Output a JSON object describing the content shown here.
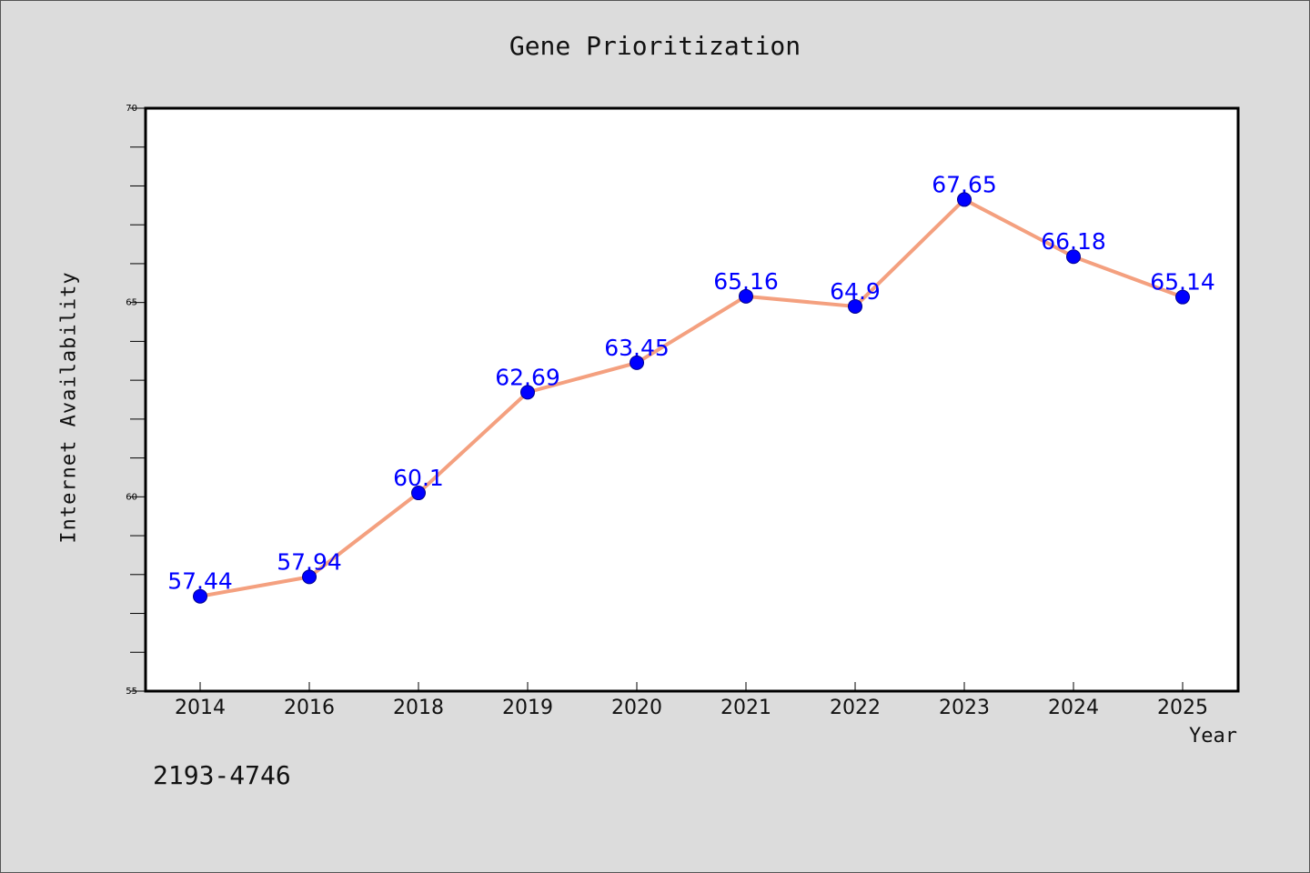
{
  "chart_data": {
    "type": "line",
    "title": "Gene Prioritization",
    "xlabel": "Year",
    "ylabel": "Internet Availability",
    "categories": [
      "2014",
      "2016",
      "2018",
      "2019",
      "2020",
      "2021",
      "2022",
      "2023",
      "2024",
      "2025"
    ],
    "series": [
      {
        "values": [
          57.44,
          57.94,
          60.1,
          62.69,
          63.45,
          65.16,
          64.9,
          67.65,
          66.18,
          65.14
        ],
        "labels": [
          "57.44",
          "57.94",
          "60.1",
          "62.69",
          "63.45",
          "65.16",
          "64.9",
          "67.65",
          "66.18",
          "65.14"
        ],
        "line_color": "#f4a07f",
        "marker_color": "#0000ff",
        "label_color": "#0000ff"
      }
    ],
    "ylim": [
      55,
      70
    ],
    "y_major_ticks": [
      "55",
      "60",
      "65",
      "70"
    ],
    "y_minor_step": 1,
    "grid": false,
    "legend": "none"
  },
  "footer_text": "2193-4746",
  "colors": {
    "background": "#dcdcdc",
    "plot_background": "#ffffff",
    "axes": "#000000"
  }
}
